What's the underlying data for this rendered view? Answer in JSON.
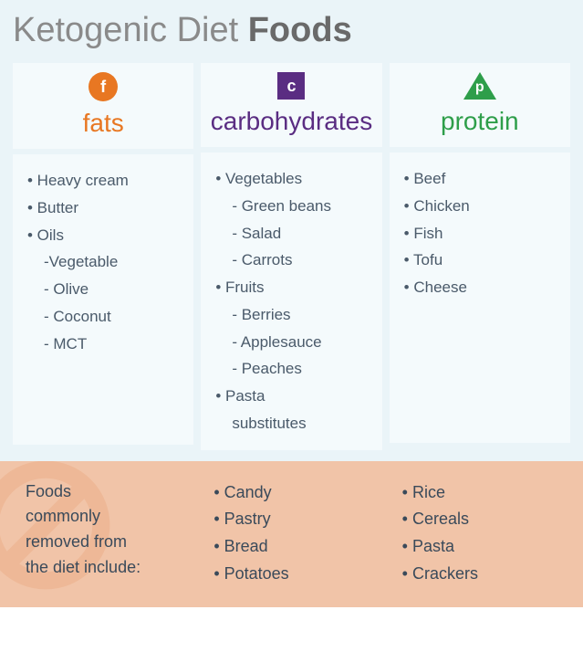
{
  "title_part1": "Ketogenic Diet ",
  "title_part2": "Foods",
  "colors": {
    "fats": "#e87722",
    "carbs": "#5a2d82",
    "protein": "#2e9e4a",
    "page_bg": "#eaf4f8",
    "panel_bg": "#f4fafc",
    "footer_bg": "#f1c4a8",
    "text": "#4a5a6a",
    "title_light": "#8a8a8a",
    "title_bold": "#6a6a6a",
    "no_symbol": "#e8a274"
  },
  "columns": {
    "fats": {
      "letter": "f",
      "label": "fats",
      "items": [
        {
          "text": "Heavy cream",
          "sub": false
        },
        {
          "text": "Butter",
          "sub": false
        },
        {
          "text": "Oils",
          "sub": false
        },
        {
          "text": "Vegetable",
          "sub": true,
          "dash": "-"
        },
        {
          "text": "Olive",
          "sub": true,
          "dash": "- "
        },
        {
          "text": "Coconut",
          "sub": true,
          "dash": "- "
        },
        {
          "text": "MCT",
          "sub": true,
          "dash": "- "
        }
      ]
    },
    "carbs": {
      "letter": "c",
      "label": "carbohydrates",
      "items": [
        {
          "text": "Vegetables",
          "sub": false
        },
        {
          "text": "Green beans",
          "sub": true,
          "dash": "- "
        },
        {
          "text": "Salad",
          "sub": true,
          "dash": "- "
        },
        {
          "text": "Carrots",
          "sub": true,
          "dash": "- "
        },
        {
          "text": "Fruits",
          "sub": false
        },
        {
          "text": "Berries",
          "sub": true,
          "dash": "- "
        },
        {
          "text": "Applesauce",
          "sub": true,
          "dash": "- "
        },
        {
          "text": "Peaches",
          "sub": true,
          "dash": "- "
        },
        {
          "text": "Pasta",
          "sub": false
        },
        {
          "text": "substitutes",
          "sub": true,
          "dash": ""
        }
      ]
    },
    "protein": {
      "letter": "p",
      "label": "protein",
      "items": [
        {
          "text": "Beef",
          "sub": false
        },
        {
          "text": "Chicken",
          "sub": false
        },
        {
          "text": "Fish",
          "sub": false
        },
        {
          "text": "Tofu",
          "sub": false
        },
        {
          "text": "Cheese",
          "sub": false
        }
      ]
    }
  },
  "footer": {
    "label_l1": "Foods",
    "label_l2": "commonly",
    "label_l3": "removed from",
    "label_l4": "the diet include:",
    "col2": [
      "Candy",
      "Pastry",
      "Bread",
      "Potatoes"
    ],
    "col3": [
      "Rice",
      "Cereals",
      "Pasta",
      "Crackers"
    ]
  }
}
